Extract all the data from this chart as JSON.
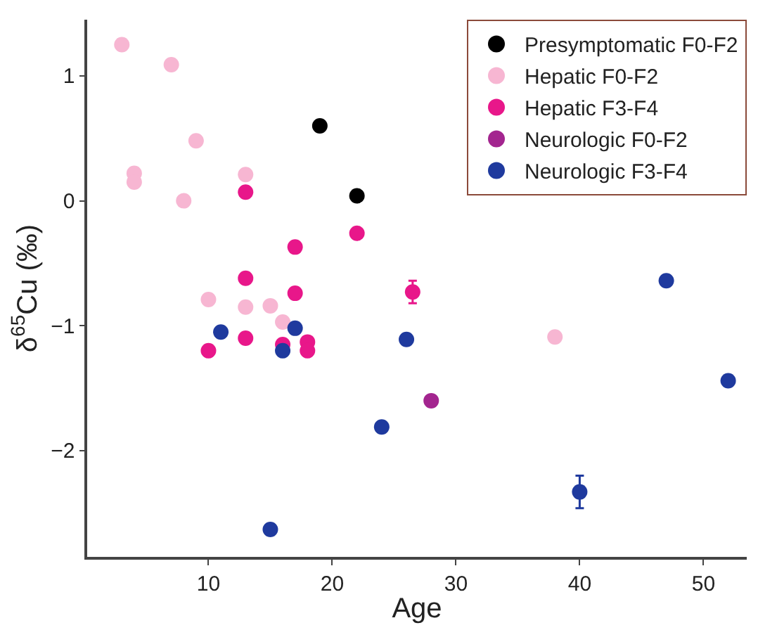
{
  "chart_data": {
    "type": "scatter",
    "xlabel": "Age",
    "ylabel": "δ$^{65}$Cu (‰)",
    "xlim": [
      0.2,
      53.5
    ],
    "ylim": [
      -2.85,
      1.45
    ],
    "xticks": [
      10,
      20,
      30,
      40,
      50
    ],
    "yticks": [
      {
        "value": -2,
        "label": "−2"
      },
      {
        "value": -1,
        "label": "−1"
      },
      0,
      1
    ],
    "legend": "top right",
    "marker": "circle",
    "series": [
      {
        "name": "Presymptomatic F0-F2",
        "color": "#000000",
        "x": [
          19,
          22
        ],
        "values": [
          0.6,
          0.04
        ]
      },
      {
        "name": "Hepatic F0-F2",
        "color": "#f7b6d2",
        "x": [
          3,
          7,
          9,
          4,
          4,
          8,
          13,
          10,
          13,
          15,
          16,
          38
        ],
        "values": [
          1.25,
          1.09,
          0.48,
          0.22,
          0.15,
          0.0,
          0.21,
          -0.79,
          -0.85,
          -0.84,
          -0.97,
          -1.09
        ]
      },
      {
        "name": "Hepatic F3-F4",
        "color": "#e8178a",
        "x": [
          13,
          17,
          22,
          13,
          17,
          26.5,
          10,
          13,
          16,
          18,
          18
        ],
        "values": [
          0.07,
          -0.37,
          -0.26,
          -0.62,
          -0.74,
          -0.73,
          -1.2,
          -1.1,
          -1.15,
          -1.13,
          -1.2
        ],
        "errors": [
          null,
          null,
          null,
          null,
          null,
          0.09,
          null,
          null,
          null,
          null,
          null
        ]
      },
      {
        "name": "Neurologic F0-F2",
        "color": "#a3258f",
        "x": [
          28
        ],
        "values": [
          -1.6
        ]
      },
      {
        "name": "Neurologic F3-F4",
        "color": "#1f3a9e",
        "x": [
          11,
          17,
          16,
          15,
          24,
          26,
          40,
          47,
          52
        ],
        "values": [
          -1.05,
          -1.02,
          -1.2,
          -2.63,
          -1.81,
          -1.11,
          -2.33,
          -0.64,
          -1.44
        ],
        "errors": [
          null,
          null,
          null,
          null,
          null,
          null,
          0.13,
          null,
          null
        ]
      }
    ]
  }
}
